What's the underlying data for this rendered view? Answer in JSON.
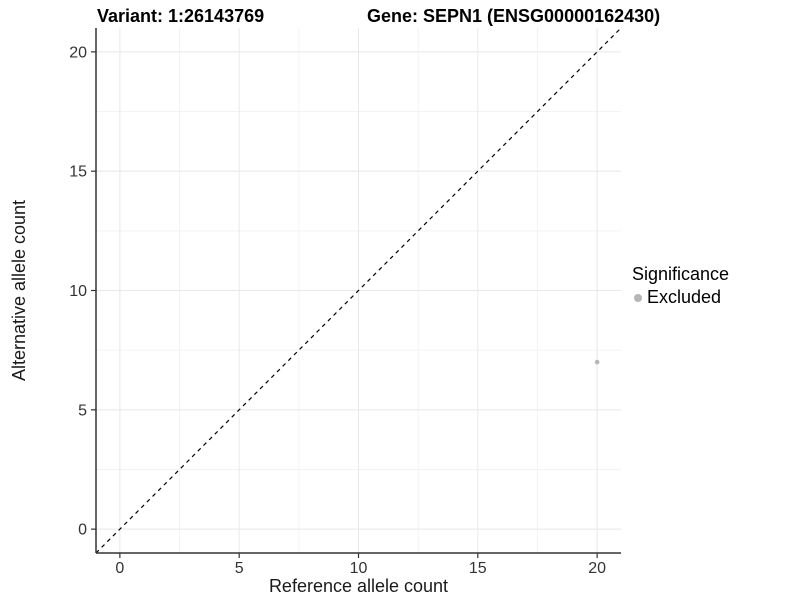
{
  "titles": {
    "variant": "Variant: 1:26143769",
    "gene": "Gene: SEPN1 (ENSG00000162430)"
  },
  "legend": {
    "title": "Significance",
    "items": [
      {
        "label": "Excluded",
        "color": "#b5b5b5"
      }
    ]
  },
  "colors": {
    "background": "#ffffff",
    "grid_major": "#e8e8e8",
    "grid_minor": "#f3f3f3",
    "axis_line": "#333333",
    "tick_text": "#333333",
    "axis_title_text": "#1a1a1a",
    "reference_line": "#000000",
    "point": "#b5b5b5"
  },
  "chart_data": {
    "type": "scatter",
    "title": "Variant: 1:26143769    Gene: SEPN1 (ENSG00000162430)",
    "xlabel": "Reference allele count",
    "ylabel": "Alternative allele count",
    "xlim": [
      -1,
      21
    ],
    "ylim": [
      -1,
      21
    ],
    "x_ticks": [
      0,
      5,
      10,
      15,
      20
    ],
    "y_ticks": [
      0,
      5,
      10,
      15,
      20
    ],
    "x_minor_ticks": [
      2.5,
      7.5,
      12.5,
      17.5
    ],
    "y_minor_ticks": [
      2.5,
      7.5,
      12.5,
      17.5
    ],
    "grid": true,
    "legend_position": "right",
    "legend_title": "Significance",
    "series": [
      {
        "name": "Excluded",
        "color": "#b5b5b5",
        "points": [
          {
            "x": 20,
            "y": 7
          }
        ]
      }
    ],
    "reference_line": {
      "type": "identity",
      "style": "dashed",
      "from": [
        -1,
        -1
      ],
      "to": [
        21,
        21
      ]
    }
  }
}
